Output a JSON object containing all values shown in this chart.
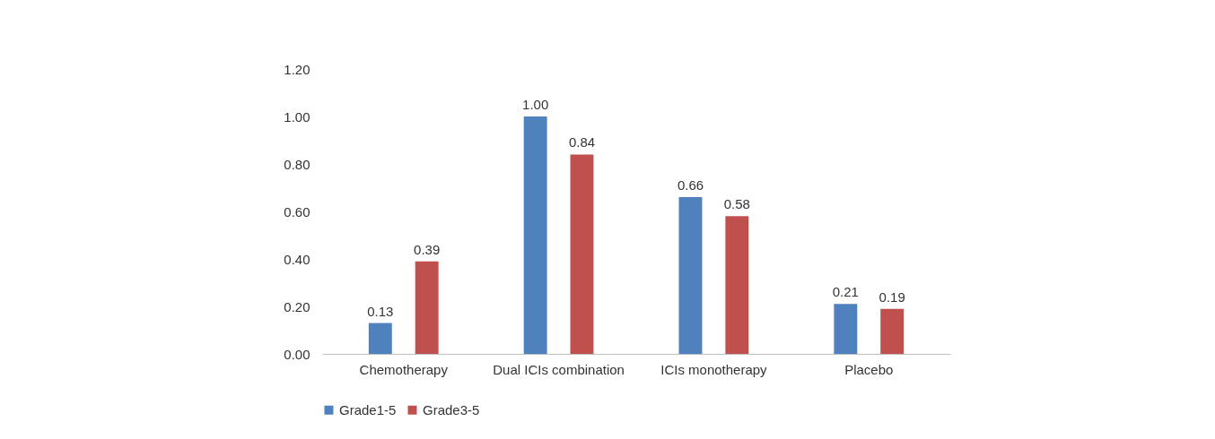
{
  "chart_data": {
    "type": "bar",
    "categories": [
      "Chemotherapy",
      "Dual ICIs combination",
      "ICIs monotherapy",
      "Placebo"
    ],
    "series": [
      {
        "name": "Grade1-5",
        "color": "#4f81bd",
        "values": [
          0.13,
          1.0,
          0.66,
          0.21
        ],
        "value_labels": [
          "0.13",
          "1.00",
          "0.66",
          "0.21"
        ]
      },
      {
        "name": "Grade3-5",
        "color": "#c0504d",
        "values": [
          0.39,
          0.84,
          0.58,
          0.19
        ],
        "value_labels": [
          "0.39",
          "0.84",
          "0.58",
          "0.19"
        ]
      }
    ],
    "ylim": [
      0,
      1.2
    ],
    "yticks": [
      {
        "value": 0,
        "label": "0.00"
      },
      {
        "value": 0.2,
        "label": "0.20"
      },
      {
        "value": 0.4,
        "label": "0.40"
      },
      {
        "value": 0.6,
        "label": "0.60"
      },
      {
        "value": 0.8,
        "label": "0.80"
      },
      {
        "value": 1,
        "label": "1.00"
      },
      {
        "value": 1.2,
        "label": "1.20"
      }
    ],
    "grid": false,
    "legend": "bottom"
  }
}
